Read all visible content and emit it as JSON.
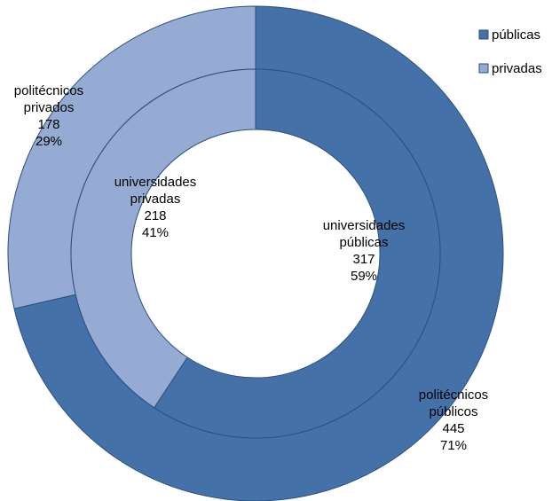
{
  "chart_data": {
    "type": "pie",
    "variant": "doughnut",
    "colors": {
      "públicas": "#4472a8",
      "privadas": "#95abd3",
      "border": "#2b4f7e"
    },
    "legend": {
      "placement": "top-right",
      "entries": [
        "públicas",
        "privadas"
      ]
    },
    "rings": [
      {
        "ring": "outer",
        "series": [
          {
            "category": "públicas",
            "label_lines": [
              "politécnicos",
              "públicos"
            ],
            "value": 445,
            "percent": "71%"
          },
          {
            "category": "privadas",
            "label_lines": [
              "politécnicos",
              "privados"
            ],
            "value": 178,
            "percent": "29%"
          }
        ]
      },
      {
        "ring": "inner",
        "series": [
          {
            "category": "públicas",
            "label_lines": [
              "universidades",
              "públicas"
            ],
            "value": 317,
            "percent": "59%"
          },
          {
            "category": "privadas",
            "label_lines": [
              "universidades",
              "privadas"
            ],
            "value": 218,
            "percent": "41%"
          }
        ]
      }
    ]
  }
}
